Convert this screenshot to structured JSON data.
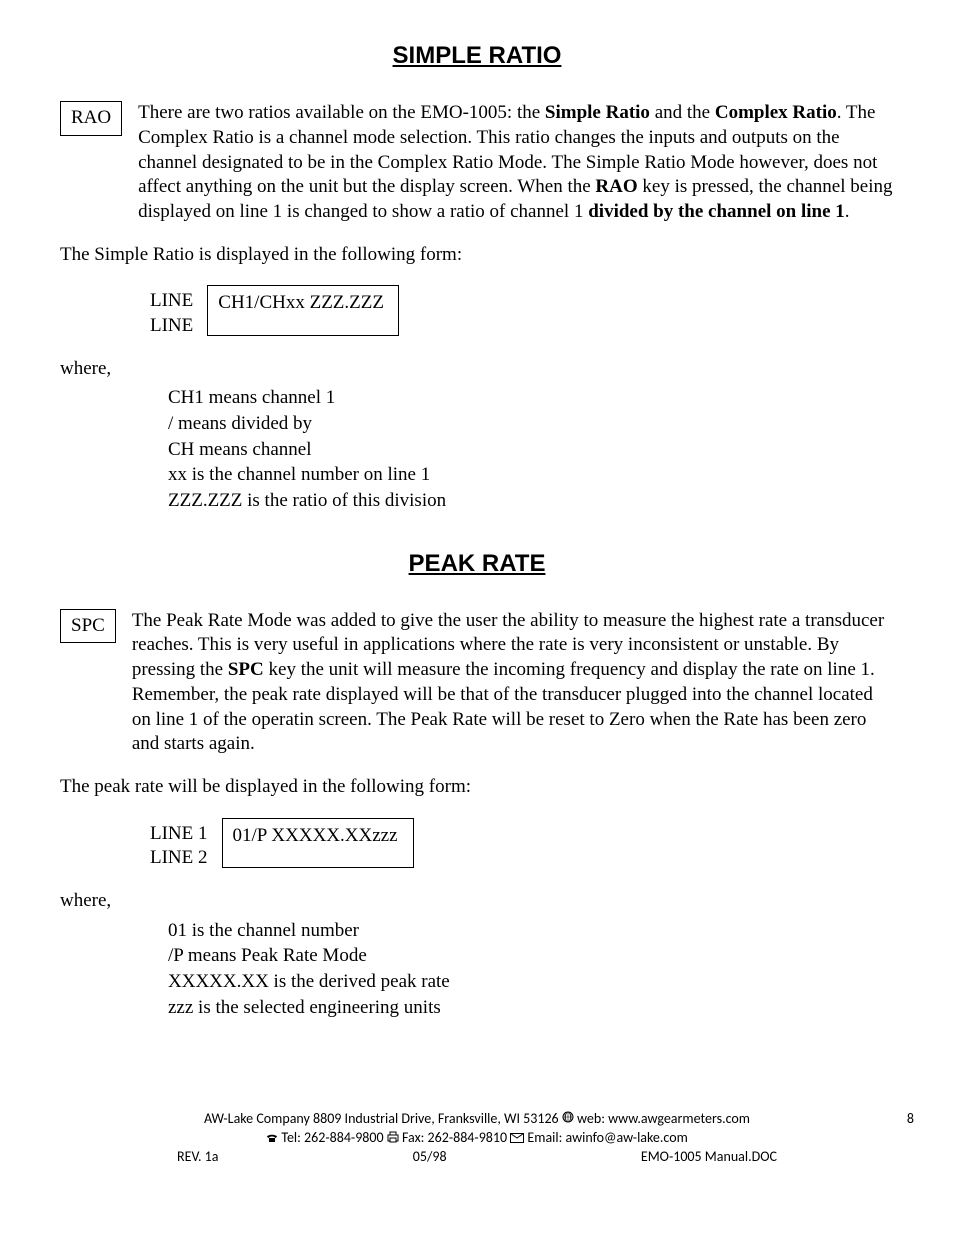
{
  "section1": {
    "title": "SIMPLE RATIO",
    "key": "RAO",
    "body_html": "There are two ratios available on the EMO-1005: the <b>Simple Ratio</b> and the <b>Complex Ratio</b>. The Complex Ratio is a channel mode selection. This ratio changes the inputs and outputs on the channel designated to be in the Complex Ratio Mode. The Simple Ratio Mode however, does not affect anything on the unit but the display screen. When the <b>RAO</b> key is pressed,  the channel being displayed on line 1 is changed to show a ratio of channel 1 <b>divided by the channel on line 1</b>.",
    "intro": "The Simple Ratio is displayed in the following form:",
    "display_label1": "LINE",
    "display_label2": "LINE",
    "display_line1": "CH1/CHxx ZZZ.ZZZ",
    "where": "where,",
    "defs": [
      "CH1 means channel 1",
      "/ means divided by",
      "CH means channel",
      "xx is the channel number on line 1",
      "ZZZ.ZZZ is the ratio of this division"
    ]
  },
  "section2": {
    "title": "PEAK RATE",
    "key": "SPC",
    "body_html": "The Peak Rate Mode was added to give the user the ability to measure the highest rate a transducer reaches. This is very useful in applications where the rate is very inconsistent or unstable. By pressing the <b>SPC</b> key the unit will measure the incoming frequency and display the rate on line 1. Remember, the peak rate displayed will be that of the transducer plugged into the channel located on line 1 of the operatin screen. The Peak Rate will be reset to Zero when the Rate has been zero and starts again.",
    "intro": "The peak rate will be displayed in the following form:",
    "display_label1": "LINE 1",
    "display_label2": "LINE 2",
    "display_line1": "01/P XXXXX.XXzzz",
    "where": "where,",
    "defs": [
      "01 is the channel number",
      "/P means Peak Rate Mode",
      "XXXXX.XX is the derived peak rate",
      "zzz is the selected engineering units"
    ]
  },
  "footer": {
    "line1_pre": "AW-Lake Company 8809 Industrial Drive, Franksville, WI 53126  ",
    "line1_web": " web: www.awgearmeters.com",
    "line2_tel": " Tel:  262-884-9800  ",
    "line2_fax": " Fax:  262-884-9810  ",
    "line2_email": " Email:  awinfo@aw-lake.com",
    "rev": "REV. 1a",
    "date": "05/98",
    "doc": "EMO-1005 Manual.DOC",
    "page": "8"
  }
}
